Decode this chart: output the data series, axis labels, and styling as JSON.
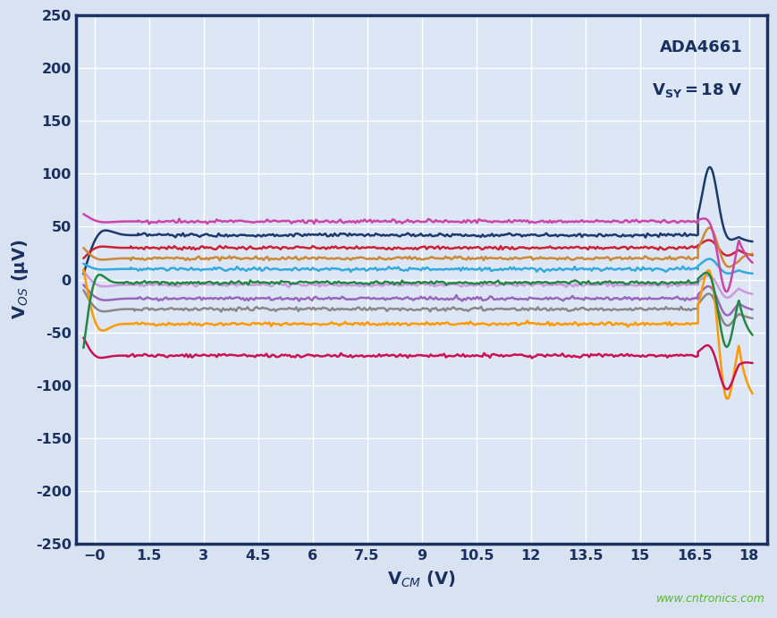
{
  "xlabel": "V$_{CM}$ (V)",
  "ylabel": "V$_{OS}$ (μV)",
  "xlim": [
    -0.5,
    18.5
  ],
  "ylim": [
    -250,
    250
  ],
  "xticks": [
    0,
    1.5,
    3,
    4.5,
    6,
    7.5,
    9,
    10.5,
    12,
    13.5,
    15,
    16.5,
    18
  ],
  "xticklabels": [
    "−0",
    "1.5",
    "3",
    "4.5",
    "6",
    "7.5",
    "9",
    "10.5",
    "12",
    "13.5",
    "15",
    "16.5",
    "18"
  ],
  "yticks": [
    -250,
    -200,
    -150,
    -100,
    -50,
    0,
    50,
    100,
    150,
    200,
    250
  ],
  "fig_bg_color": "#d8e2f0",
  "plot_bg_color": "#dce6f5",
  "border_color": "#1a3060",
  "grid_color": "#ffffff",
  "tick_color": "#1a3060",
  "watermark": "www.cntronics.com",
  "watermark_color": "#55bb22",
  "annot_line1": "ADA4661",
  "annot_line2": "V",
  "annot_line2_sub": "SY",
  "annot_line2_rest": " = 18 V",
  "curves": [
    {
      "color": "#1b3a6b",
      "flat": 42,
      "lstart": 5,
      "rpeak": 107,
      "rdip": 35,
      "rend": 35,
      "settle_x": 1.2
    },
    {
      "color": "#cc2233",
      "flat": 30,
      "lstart": 20,
      "rpeak": 38,
      "rdip": 22,
      "rend": 22,
      "settle_x": 1.0
    },
    {
      "color": "#33aadd",
      "flat": 10,
      "lstart": 15,
      "rpeak": 20,
      "rdip": 5,
      "rend": 5,
      "settle_x": 1.0
    },
    {
      "color": "#cc99dd",
      "flat": -5,
      "lstart": 8,
      "rpeak": 5,
      "rdip": -18,
      "rend": -15,
      "settle_x": 1.1
    },
    {
      "color": "#9966bb",
      "flat": -18,
      "lstart": -5,
      "rpeak": -5,
      "rdip": -35,
      "rend": -30,
      "settle_x": 1.2
    },
    {
      "color": "#888888",
      "flat": -28,
      "lstart": -10,
      "rpeak": -12,
      "rdip": -45,
      "rend": -38,
      "settle_x": 1.1
    },
    {
      "color": "#ff9900",
      "flat": -42,
      "lstart": 10,
      "rpeak": 15,
      "rdip": -118,
      "rend": -118,
      "settle_x": 1.0
    },
    {
      "color": "#cc1155",
      "flat": -72,
      "lstart": -55,
      "rpeak": -60,
      "rdip": -105,
      "rend": -80,
      "settle_x": 0.9
    },
    {
      "color": "#228844",
      "flat": -3,
      "lstart": -65,
      "rpeak": 10,
      "rdip": -65,
      "rend": -60,
      "settle_x": 0.8
    },
    {
      "color": "#cc8833",
      "flat": 20,
      "lstart": 30,
      "rpeak": 50,
      "rdip": 10,
      "rend": 25,
      "settle_x": 1.0
    },
    {
      "color": "#cc44aa",
      "flat": 55,
      "lstart": 62,
      "rpeak": 60,
      "rdip": -12,
      "rend": 10,
      "settle_x": 1.2
    }
  ]
}
